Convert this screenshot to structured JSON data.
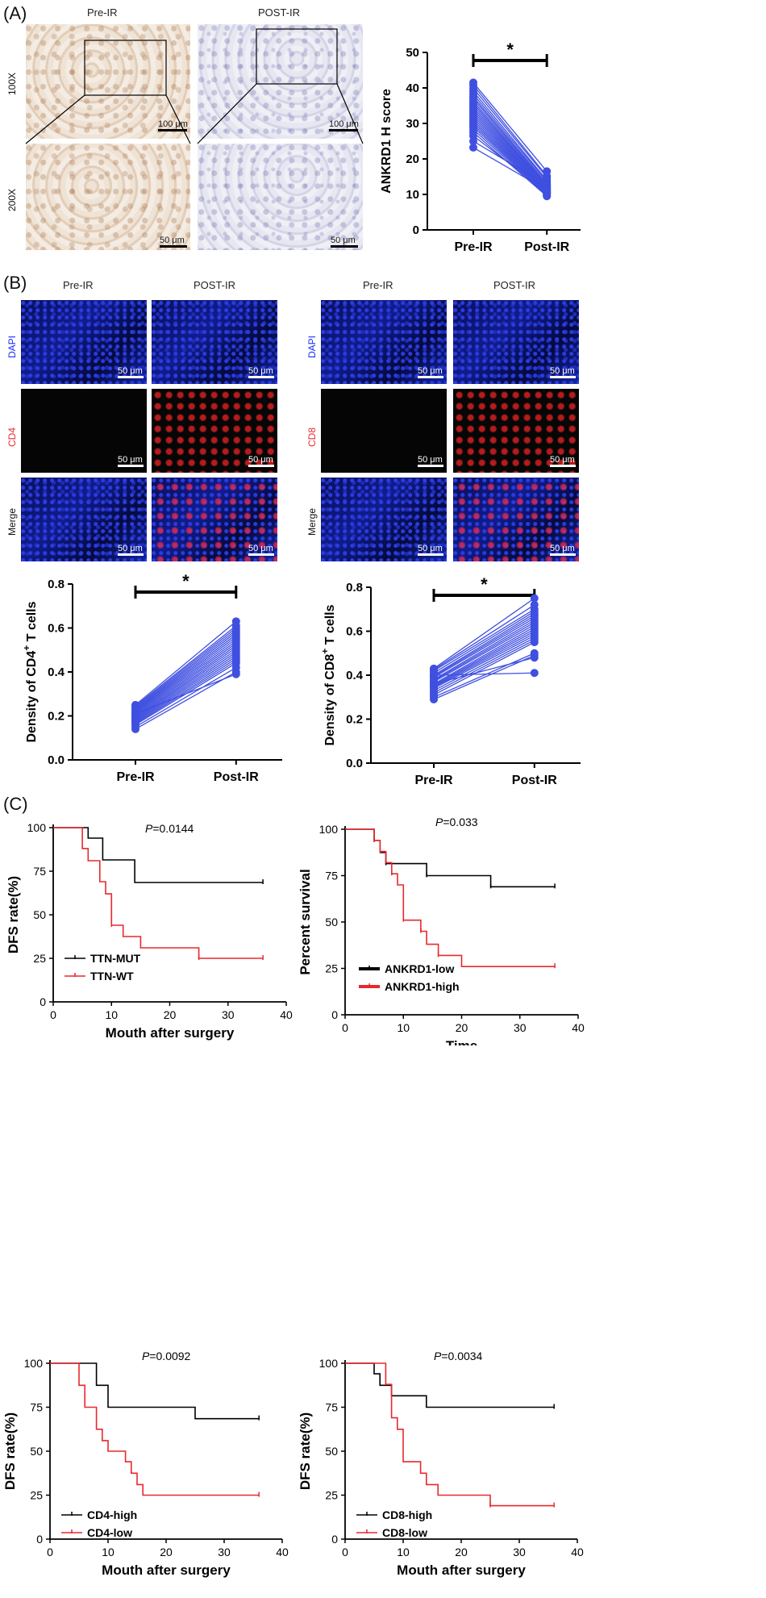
{
  "panels": {
    "A": {
      "label": "(A)",
      "col_pre": "Pre-IR",
      "col_post": "POST-IR",
      "row_100": "100X",
      "row_200": "200X",
      "scale_100": "100 μm",
      "scale_50": "50 μm"
    },
    "B": {
      "label": "(B)",
      "col_pre": "Pre-IR",
      "col_post": "POST-IR",
      "row_dapi": "DAPI",
      "row_cd4": "CD4",
      "row_cd8": "CD8",
      "row_merge": "Merge",
      "scale": "50 μm"
    },
    "C": {
      "label": "(C)"
    }
  },
  "chart_data": [
    {
      "id": "ankrd1",
      "type": "paired-line",
      "title": "",
      "ylabel": "ANKRD1 H score",
      "categories": [
        "Pre-IR",
        "Post-IR"
      ],
      "ylim": [
        0,
        50
      ],
      "yticks": [
        0,
        10,
        20,
        30,
        40,
        50
      ],
      "sig": "*",
      "pairs": [
        [
          41.5,
          16.5
        ],
        [
          40.8,
          15.2
        ],
        [
          39.9,
          14.8
        ],
        [
          39.0,
          14.0
        ],
        [
          38.2,
          13.6
        ],
        [
          37.5,
          13.1
        ],
        [
          36.9,
          12.8
        ],
        [
          36.2,
          12.5
        ],
        [
          35.6,
          12.2
        ],
        [
          35.0,
          12.0
        ],
        [
          34.4,
          11.8
        ],
        [
          33.8,
          11.5
        ],
        [
          33.2,
          11.3
        ],
        [
          32.6,
          11.1
        ],
        [
          32.0,
          10.9
        ],
        [
          31.4,
          10.7
        ],
        [
          30.8,
          10.5
        ],
        [
          30.2,
          10.3
        ],
        [
          29.6,
          10.1
        ],
        [
          29.0,
          9.9
        ],
        [
          28.3,
          9.7
        ],
        [
          27.5,
          9.5
        ],
        [
          26.5,
          10.6
        ],
        [
          25.0,
          12.6
        ],
        [
          23.2,
          11.2
        ]
      ]
    },
    {
      "id": "cd4",
      "type": "paired-line",
      "ylabel": "Density of CD4+ T cells",
      "categories": [
        "Pre-IR",
        "Post-IR"
      ],
      "ylim": [
        0,
        0.8
      ],
      "yticks": [
        0.0,
        0.2,
        0.4,
        0.6,
        0.8
      ],
      "sig": "*",
      "pairs": [
        [
          0.25,
          0.63
        ],
        [
          0.245,
          0.61
        ],
        [
          0.24,
          0.6
        ],
        [
          0.235,
          0.59
        ],
        [
          0.23,
          0.58
        ],
        [
          0.225,
          0.57
        ],
        [
          0.22,
          0.56
        ],
        [
          0.215,
          0.55
        ],
        [
          0.21,
          0.54
        ],
        [
          0.205,
          0.53
        ],
        [
          0.2,
          0.52
        ],
        [
          0.195,
          0.51
        ],
        [
          0.19,
          0.5
        ],
        [
          0.185,
          0.49
        ],
        [
          0.18,
          0.48
        ],
        [
          0.175,
          0.47
        ],
        [
          0.17,
          0.46
        ],
        [
          0.165,
          0.45
        ],
        [
          0.16,
          0.44
        ],
        [
          0.15,
          0.42
        ],
        [
          0.14,
          0.4
        ],
        [
          0.21,
          0.39
        ]
      ]
    },
    {
      "id": "cd8",
      "type": "paired-line",
      "ylabel": "Density of CD8+ T cells",
      "categories": [
        "Pre-IR",
        "Post-IR"
      ],
      "ylim": [
        0,
        0.8
      ],
      "yticks": [
        0.0,
        0.2,
        0.4,
        0.6,
        0.8
      ],
      "sig": "*",
      "pairs": [
        [
          0.43,
          0.75
        ],
        [
          0.425,
          0.72
        ],
        [
          0.42,
          0.7
        ],
        [
          0.41,
          0.69
        ],
        [
          0.4,
          0.68
        ],
        [
          0.395,
          0.67
        ],
        [
          0.39,
          0.66
        ],
        [
          0.38,
          0.65
        ],
        [
          0.375,
          0.64
        ],
        [
          0.37,
          0.63
        ],
        [
          0.36,
          0.62
        ],
        [
          0.355,
          0.61
        ],
        [
          0.35,
          0.6
        ],
        [
          0.345,
          0.59
        ],
        [
          0.34,
          0.58
        ],
        [
          0.33,
          0.57
        ],
        [
          0.32,
          0.56
        ],
        [
          0.31,
          0.55
        ],
        [
          0.3,
          0.5
        ],
        [
          0.29,
          0.49
        ],
        [
          0.4,
          0.41
        ],
        [
          0.36,
          0.48
        ]
      ]
    },
    {
      "id": "ttn",
      "type": "km",
      "pvalue_prefix": "P",
      "pvalue_suffix": "=0.0144",
      "ylabel": "DFS rate(%)",
      "xlabel": "Mouth after surgery",
      "xlim": [
        0,
        40
      ],
      "ylim": [
        0,
        100
      ],
      "xticks": [
        0,
        10,
        20,
        30,
        40
      ],
      "yticks": [
        0,
        25,
        50,
        75,
        100
      ],
      "series": [
        {
          "name": "TTN-MUT",
          "color": "#000000",
          "steps": [
            [
              0,
              100
            ],
            [
              6,
              100
            ],
            [
              6,
              94
            ],
            [
              8.5,
              94
            ],
            [
              8.5,
              81.5
            ],
            [
              14,
              81.5
            ],
            [
              14,
              68.5
            ],
            [
              36,
              68.5
            ]
          ],
          "censor": [
            [
              36,
              68.5
            ]
          ]
        },
        {
          "name": "TTN-WT",
          "color": "#e8282d",
          "steps": [
            [
              0,
              100
            ],
            [
              5,
              100
            ],
            [
              5,
              88
            ],
            [
              6,
              88
            ],
            [
              6,
              81
            ],
            [
              8,
              81
            ],
            [
              8,
              69
            ],
            [
              9,
              69
            ],
            [
              9,
              62
            ],
            [
              10,
              62
            ],
            [
              10,
              44
            ],
            [
              12,
              44
            ],
            [
              12,
              37.5
            ],
            [
              15,
              37.5
            ],
            [
              15,
              31
            ],
            [
              25,
              31
            ],
            [
              25,
              25
            ],
            [
              36,
              25
            ]
          ],
          "censor": [
            [
              10,
              44
            ],
            [
              25,
              25
            ],
            [
              36,
              25
            ]
          ]
        }
      ]
    },
    {
      "id": "ankrd1km",
      "type": "km",
      "pvalue_prefix": "P",
      "pvalue_suffix": "=0.033",
      "ylabel": "Percent survival",
      "xlabel": "Time",
      "xlim": [
        0,
        40
      ],
      "ylim": [
        0,
        100
      ],
      "xticks": [
        0,
        10,
        20,
        30,
        40
      ],
      "yticks": [
        0,
        25,
        50,
        75,
        100
      ],
      "series": [
        {
          "name": "ANKRD1-low",
          "color": "#000000",
          "steps": [
            [
              0,
              100
            ],
            [
              5,
              100
            ],
            [
              5,
              94
            ],
            [
              6,
              94
            ],
            [
              6,
              87.5
            ],
            [
              7,
              87.5
            ],
            [
              7,
              81.5
            ],
            [
              14,
              81.5
            ],
            [
              14,
              75
            ],
            [
              25,
              75
            ],
            [
              25,
              69
            ],
            [
              36,
              69
            ]
          ],
          "censor": [
            [
              5,
              94
            ],
            [
              7,
              81.5
            ],
            [
              14,
              75
            ],
            [
              25,
              69
            ],
            [
              36,
              69
            ]
          ]
        },
        {
          "name": "ANKRD1-high",
          "color": "#e8282d",
          "steps": [
            [
              0,
              100
            ],
            [
              5,
              100
            ],
            [
              5,
              94
            ],
            [
              6,
              94
            ],
            [
              6,
              88
            ],
            [
              7,
              88
            ],
            [
              7,
              82
            ],
            [
              8,
              82
            ],
            [
              8,
              76
            ],
            [
              9,
              76
            ],
            [
              9,
              70
            ],
            [
              10,
              70
            ],
            [
              10,
              51
            ],
            [
              13,
              51
            ],
            [
              13,
              45
            ],
            [
              14,
              45
            ],
            [
              14,
              38
            ],
            [
              16,
              38
            ],
            [
              16,
              32
            ],
            [
              20,
              32
            ],
            [
              20,
              26
            ],
            [
              36,
              26
            ]
          ],
          "censor": [
            [
              5,
              94
            ],
            [
              6,
              88
            ],
            [
              8,
              76
            ],
            [
              10,
              51
            ],
            [
              13,
              45
            ],
            [
              16,
              32
            ],
            [
              36,
              26
            ]
          ]
        }
      ]
    },
    {
      "id": "cd4km",
      "type": "km",
      "pvalue_prefix": "P",
      "pvalue_suffix": "=0.0092",
      "ylabel": "DFS rate(%)",
      "xlabel": "Mouth after surgery",
      "xlim": [
        0,
        40
      ],
      "ylim": [
        0,
        100
      ],
      "xticks": [
        0,
        10,
        20,
        30,
        40
      ],
      "yticks": [
        0,
        25,
        50,
        75,
        100
      ],
      "series": [
        {
          "name": "CD4-high",
          "color": "#000000",
          "steps": [
            [
              0,
              100
            ],
            [
              8,
              100
            ],
            [
              8,
              87.5
            ],
            [
              10,
              87.5
            ],
            [
              10,
              75
            ],
            [
              25,
              75
            ],
            [
              25,
              68.5
            ],
            [
              36,
              68.5
            ]
          ],
          "censor": [
            [
              36,
              68.5
            ]
          ]
        },
        {
          "name": "CD4-low",
          "color": "#e8282d",
          "steps": [
            [
              0,
              100
            ],
            [
              5,
              100
            ],
            [
              5,
              87.5
            ],
            [
              6,
              87.5
            ],
            [
              6,
              75
            ],
            [
              8,
              75
            ],
            [
              8,
              62.5
            ],
            [
              9,
              62.5
            ],
            [
              9,
              56
            ],
            [
              10,
              56
            ],
            [
              10,
              50
            ],
            [
              13,
              50
            ],
            [
              13,
              44
            ],
            [
              14,
              44
            ],
            [
              14,
              37.5
            ],
            [
              15,
              37.5
            ],
            [
              15,
              31
            ],
            [
              16,
              31
            ],
            [
              16,
              25
            ],
            [
              36,
              25
            ]
          ],
          "censor": [
            [
              36,
              25
            ]
          ]
        }
      ]
    },
    {
      "id": "cd8km",
      "type": "km",
      "pvalue_prefix": "P",
      "pvalue_suffix": "=0.0034",
      "ylabel": "DFS rate(%)",
      "xlabel": "Mouth after surgery",
      "xlim": [
        0,
        40
      ],
      "ylim": [
        0,
        100
      ],
      "xticks": [
        0,
        10,
        20,
        30,
        40
      ],
      "yticks": [
        0,
        25,
        50,
        75,
        100
      ],
      "series": [
        {
          "name": "CD8-high",
          "color": "#000000",
          "steps": [
            [
              0,
              100
            ],
            [
              5,
              100
            ],
            [
              5,
              94
            ],
            [
              6,
              94
            ],
            [
              6,
              87.5
            ],
            [
              8,
              87.5
            ],
            [
              8,
              81.5
            ],
            [
              14,
              81.5
            ],
            [
              14,
              75
            ],
            [
              36,
              75
            ]
          ],
          "censor": [
            [
              36,
              75
            ]
          ]
        },
        {
          "name": "CD8-low",
          "color": "#e8282d",
          "steps": [
            [
              0,
              100
            ],
            [
              7,
              100
            ],
            [
              7,
              88
            ],
            [
              8,
              88
            ],
            [
              8,
              69
            ],
            [
              9,
              69
            ],
            [
              9,
              62.5
            ],
            [
              10,
              62.5
            ],
            [
              10,
              44
            ],
            [
              13,
              44
            ],
            [
              13,
              37.5
            ],
            [
              14,
              37.5
            ],
            [
              14,
              31
            ],
            [
              16,
              31
            ],
            [
              16,
              25
            ],
            [
              25,
              25
            ],
            [
              25,
              19
            ],
            [
              36,
              19
            ]
          ],
          "censor": [
            [
              25,
              19
            ],
            [
              36,
              19
            ]
          ]
        }
      ]
    }
  ]
}
